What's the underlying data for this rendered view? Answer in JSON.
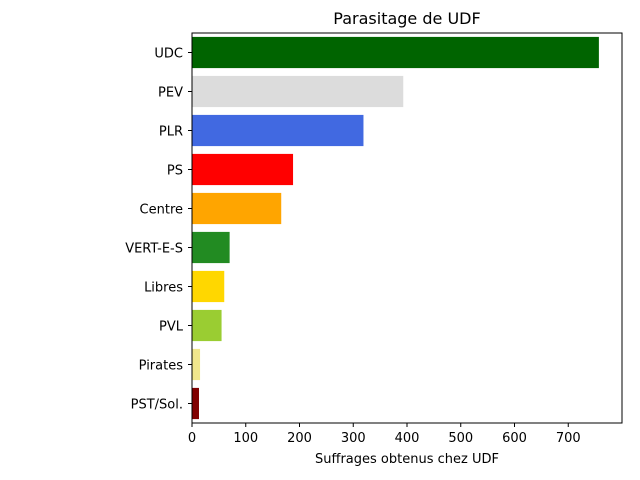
{
  "chart_data": {
    "type": "bar",
    "orientation": "horizontal",
    "title": "Parasitage de UDF",
    "xlabel": "Suffrages obtenus chez UDF",
    "ylabel": "",
    "xlim": [
      0,
      800
    ],
    "xticks": [
      0,
      100,
      200,
      300,
      400,
      500,
      600,
      700
    ],
    "grid": false,
    "categories": [
      "UDC",
      "PEV",
      "PLR",
      "PS",
      "Centre",
      "VERT-E-S",
      "Libres",
      "PVL",
      "Pirates",
      "PST/Sol."
    ],
    "values": [
      757,
      393,
      319,
      188,
      166,
      70,
      60,
      55,
      15,
      13
    ],
    "colors": [
      "#006400",
      "#dcdcdc",
      "#4169e1",
      "#ff0000",
      "#ffa500",
      "#228b22",
      "#ffd700",
      "#9acd32",
      "#f0e68c",
      "#800000"
    ]
  }
}
